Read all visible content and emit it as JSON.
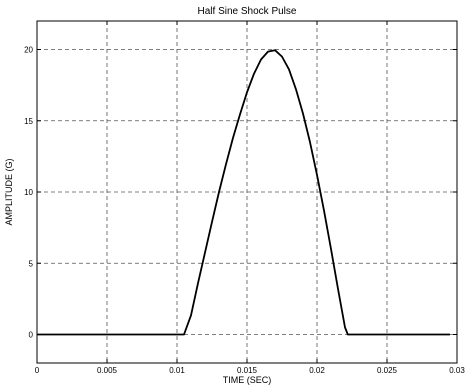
{
  "chart_data": {
    "type": "line",
    "title": "Half Sine Shock Pulse",
    "xlabel": "TIME (SEC)",
    "ylabel": "AMPLITUDE (G)",
    "xlim": [
      0,
      0.03
    ],
    "ylim": [
      -2,
      22
    ],
    "xticks": [
      0,
      0.005,
      0.01,
      0.015,
      0.02,
      0.025,
      0.03
    ],
    "xtick_labels": [
      "0",
      "0.005",
      "0.01",
      "0.015",
      "0.02",
      "0.025",
      "0.03"
    ],
    "yticks": [
      0,
      5,
      10,
      15,
      20
    ],
    "ytick_labels": [
      "0",
      "5",
      "10",
      "15",
      "20"
    ],
    "grid": true,
    "series": [
      {
        "color": "#000000",
        "x": [
          0,
          0.002,
          0.004,
          0.006,
          0.008,
          0.0105,
          0.011,
          0.0115,
          0.012,
          0.0125,
          0.013,
          0.0135,
          0.014,
          0.0145,
          0.015,
          0.0155,
          0.016,
          0.0165,
          0.017,
          0.0175,
          0.018,
          0.0185,
          0.019,
          0.0195,
          0.02,
          0.0205,
          0.021,
          0.0215,
          0.022,
          0.0222,
          0.024,
          0.026,
          0.028,
          0.0295
        ],
        "y": [
          0,
          0,
          0,
          0,
          0,
          0,
          1.35,
          3.6,
          5.75,
          7.9,
          10.0,
          11.95,
          13.8,
          15.45,
          17.0,
          18.3,
          19.3,
          19.85,
          19.95,
          19.5,
          18.6,
          17.2,
          15.5,
          13.5,
          11.2,
          8.7,
          6.0,
          3.2,
          0.5,
          0,
          0,
          0,
          0,
          0
        ]
      }
    ]
  }
}
